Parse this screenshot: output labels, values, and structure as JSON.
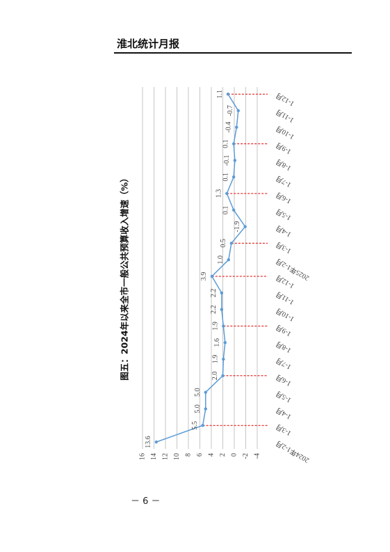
{
  "header": {
    "title": "淮北统计月报"
  },
  "page_number": "－ 6 －",
  "chart_data": {
    "type": "line",
    "title": "图五：2024年以来全市一般公共预算收入增速（%）",
    "categories": [
      "2024年1-2月",
      "1-3月",
      "1-4月",
      "1-5月",
      "1-6月",
      "1-7月",
      "1-8月",
      "1-9月",
      "1-10月",
      "1-11月",
      "1-12月",
      "2025年1-2月",
      "1-3月",
      "1-4月",
      "1-5月",
      "1-6月",
      "1-7月",
      "1-8月",
      "1-9月",
      "1-10月",
      "1-11月",
      "1-12月"
    ],
    "values": [
      13.6,
      5.5,
      5.0,
      5.0,
      2.0,
      1.9,
      1.6,
      1.9,
      2.2,
      2.2,
      3.9,
      1.0,
      0.5,
      -1.9,
      0.1,
      1.3,
      0.1,
      -0.1,
      0.1,
      -0.4,
      -0.7,
      1.1
    ],
    "value_labels": [
      "13.6",
      "5.5",
      "5.0",
      "5.0",
      "2.0",
      "1.9",
      "1.6",
      "1.9",
      "2.2",
      "2.2",
      "3.9",
      "1.0",
      "0.5",
      "-1.9",
      "0.1",
      "1.3",
      "0.1",
      "-0.1",
      "0.1",
      "-0.4",
      "-0.7",
      "1.1"
    ],
    "color": "#5b9bd5",
    "drop_line_color": "#e00000",
    "ylim": [
      -4,
      16
    ],
    "yticks": [
      -4,
      -2,
      0,
      2,
      4,
      6,
      8,
      10,
      12,
      14,
      16
    ],
    "grid": true
  }
}
